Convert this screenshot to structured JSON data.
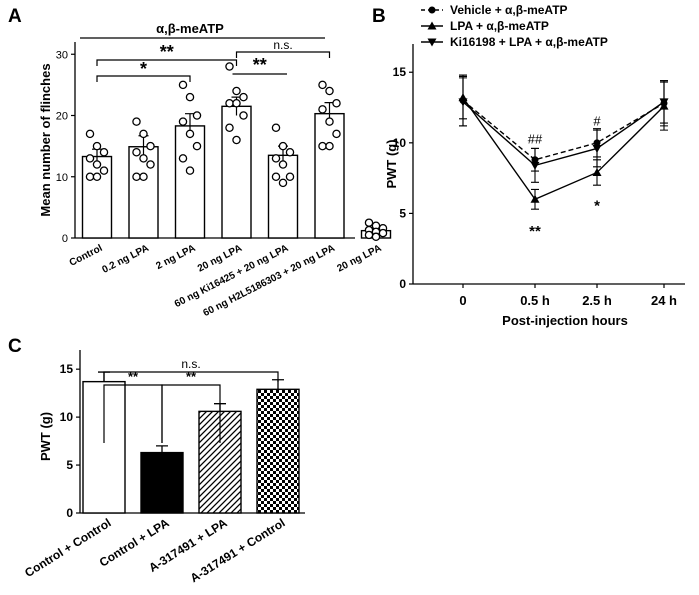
{
  "panel_labels": [
    "A",
    "B",
    "C"
  ],
  "chart_data": [
    {
      "panel": "A",
      "type": "bar",
      "title": "α,β-meATP",
      "ylabel": "Mean number of flinches",
      "xlabel": "",
      "ylim": [
        0,
        32
      ],
      "yticks": [
        0,
        10,
        20,
        30
      ],
      "categories": [
        "Control",
        "0.2 ng LPA",
        "2 ng LPA",
        "20 ng LPA",
        "60 ng Ki16425 + 20 ng LPA",
        "60 ng H2L5186303 + 20 ng LPA",
        "20 ng LPA"
      ],
      "values": [
        13.3,
        14.9,
        18.3,
        21.5,
        13.5,
        20.3,
        1.2
      ],
      "errors": [
        1.2,
        1.8,
        2.0,
        1.5,
        1.5,
        1.8,
        0.3
      ],
      "points": [
        [
          17,
          15,
          14,
          13,
          12,
          11,
          10,
          10
        ],
        [
          19,
          17,
          15,
          14,
          13,
          12,
          10,
          10
        ],
        [
          25,
          23,
          20,
          19,
          17,
          15,
          13,
          11
        ],
        [
          28,
          24,
          23,
          22,
          22,
          20,
          18,
          16
        ],
        [
          18,
          15,
          14,
          13,
          12,
          10,
          10,
          9
        ],
        [
          25,
          24,
          22,
          21,
          19,
          17,
          15,
          15
        ],
        [
          2.5,
          2,
          1.6,
          1.3,
          1,
          0.8,
          0.5,
          0.2
        ]
      ],
      "significance": [
        {
          "from": "Control",
          "to": "2 ng LPA",
          "label": "*"
        },
        {
          "from": "Control",
          "to": "20 ng LPA",
          "label": "**"
        },
        {
          "from": "20 ng LPA",
          "to": "60 ng Ki16425 + 20 ng LPA",
          "label": "**"
        },
        {
          "from": "20 ng LPA",
          "to": "60 ng H2L5186303 + 20 ng LPA",
          "label": "n.s."
        }
      ]
    },
    {
      "panel": "B",
      "type": "line",
      "title": "",
      "xlabel": "Post-injection hours",
      "ylabel": "PWT (g)",
      "ylim": [
        0,
        17
      ],
      "yticks": [
        0,
        5,
        10,
        15
      ],
      "x": [
        "0",
        "0.5 h",
        "2.5 h",
        "24 h"
      ],
      "legend_position": "top-right",
      "series": [
        {
          "name": "Vehicle + α,β-meATP",
          "values": [
            13.0,
            8.8,
            10.0,
            12.8
          ],
          "errors": [
            1.8,
            0.8,
            1.0,
            1.6
          ],
          "marker": "circle",
          "style": "dashed"
        },
        {
          "name": "LPA + α,β-meATP",
          "values": [
            13.2,
            6.0,
            7.9,
            12.6
          ],
          "errors": [
            1.5,
            0.7,
            0.9,
            1.7
          ],
          "marker": "triangle-up",
          "style": "solid"
        },
        {
          "name": "Ki16198 + LPA + α,β-meATP",
          "values": [
            12.9,
            8.4,
            9.6,
            12.9
          ],
          "errors": [
            1.7,
            1.2,
            1.3,
            1.5
          ],
          "marker": "triangle-down",
          "style": "solid"
        }
      ],
      "annotations": [
        {
          "x": "0.5 h",
          "label": "##",
          "position": "above"
        },
        {
          "x": "0.5 h",
          "label": "**",
          "position": "below"
        },
        {
          "x": "2.5 h",
          "label": "#",
          "position": "above"
        },
        {
          "x": "2.5 h",
          "label": "*",
          "position": "below"
        }
      ]
    },
    {
      "panel": "C",
      "type": "bar",
      "title": "",
      "ylabel": "PWT (g)",
      "xlabel": "",
      "ylim": [
        0,
        17
      ],
      "yticks": [
        0,
        5,
        10,
        15
      ],
      "categories": [
        "Control + Control",
        "Control + LPA",
        "A-317491 + LPA",
        "A-317491 + Control"
      ],
      "values": [
        13.7,
        6.3,
        10.6,
        12.9
      ],
      "errors": [
        1.0,
        0.7,
        0.8,
        1.0
      ],
      "fills": [
        "white",
        "black",
        "diagonal-hatch",
        "checker"
      ],
      "significance": [
        {
          "from": "Control + Control",
          "to": "Control + LPA",
          "label": "**"
        },
        {
          "from": "Control + LPA",
          "to": "A-317491 + LPA",
          "label": "**"
        },
        {
          "from": "Control + Control",
          "to": "A-317491 + Control",
          "label": "n.s."
        }
      ]
    }
  ]
}
